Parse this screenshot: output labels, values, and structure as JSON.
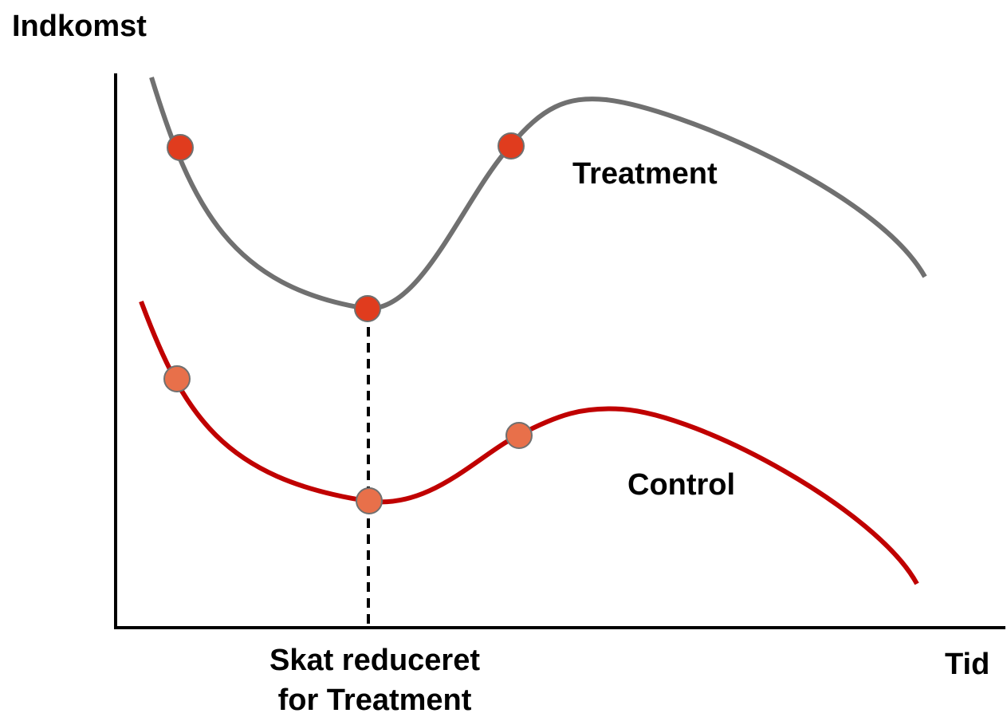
{
  "axes": {
    "y_label": "Indkomst",
    "x_label": "Tid"
  },
  "curves": {
    "treatment": "Treatment",
    "control": "Control"
  },
  "annotation": {
    "lines": [
      "Skat reduceret",
      "for Treatment"
    ]
  }
}
